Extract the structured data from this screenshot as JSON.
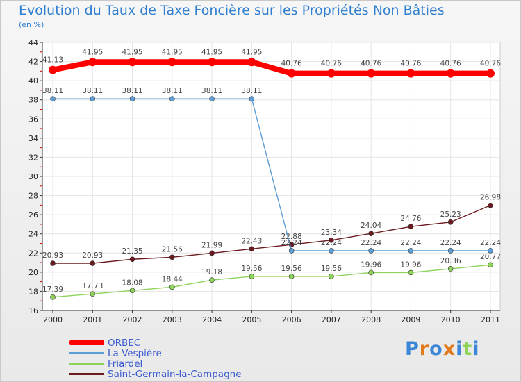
{
  "title": "Evolution du Taux de Taxe Foncière sur les Propriétés Non Bâties",
  "unit": "(en %)",
  "logo": {
    "text": "Proxiti"
  },
  "chart_data": {
    "type": "line",
    "x": [
      "2000",
      "2001",
      "2002",
      "2003",
      "2004",
      "2005",
      "2006",
      "2007",
      "2008",
      "2009",
      "2010",
      "2011"
    ],
    "ylim": [
      16,
      44
    ],
    "yticks": [
      16,
      18,
      20,
      22,
      24,
      26,
      28,
      30,
      32,
      34,
      36,
      38,
      40,
      42,
      44
    ],
    "series": [
      {
        "name": "ORBEC",
        "color": "#ff0000",
        "values": [
          41.13,
          41.95,
          41.95,
          41.95,
          41.95,
          41.95,
          40.76,
          40.76,
          40.76,
          40.76,
          40.76,
          40.76
        ],
        "labels": [
          "41.13",
          "41.95",
          "41.95",
          "41.95",
          "41.95",
          "41.95",
          "40.76",
          "40.76",
          "40.76",
          "40.76",
          "40.76",
          "40.76"
        ]
      },
      {
        "name": "La Vespière",
        "color": "#5d9ed6",
        "values": [
          38.11,
          38.11,
          38.11,
          38.11,
          38.11,
          38.11,
          22.24,
          22.24,
          22.24,
          22.24,
          22.24,
          22.24
        ],
        "labels": [
          "38.11",
          "38.11",
          "38.11",
          "38.11",
          "38.11",
          "38.11",
          "22.24",
          "22.24",
          "22.24",
          "22.24",
          "22.24",
          "22.24"
        ]
      },
      {
        "name": "Friardel",
        "color": "#8fd45a",
        "values": [
          17.39,
          17.73,
          18.08,
          18.44,
          19.18,
          19.56,
          19.56,
          19.56,
          19.96,
          19.96,
          20.36,
          20.77
        ],
        "labels": [
          "17.39",
          "17.73",
          "18.08",
          "18.44",
          "19.18",
          "19.56",
          "19.56",
          "19.56",
          "19.96",
          "19.96",
          "20.36",
          "20.77"
        ]
      },
      {
        "name": "Saint-Germain-la-Campagne",
        "color": "#6b1a1f",
        "values": [
          20.93,
          20.93,
          21.35,
          21.56,
          21.99,
          22.43,
          22.88,
          23.34,
          24.04,
          24.76,
          25.23,
          26.98
        ],
        "labels": [
          "20.93",
          "20.93",
          "21.35",
          "21.56",
          "21.99",
          "22.43",
          "22.88",
          "23.34",
          "24.04",
          "24.76",
          "25.23",
          "26.98"
        ]
      }
    ]
  }
}
